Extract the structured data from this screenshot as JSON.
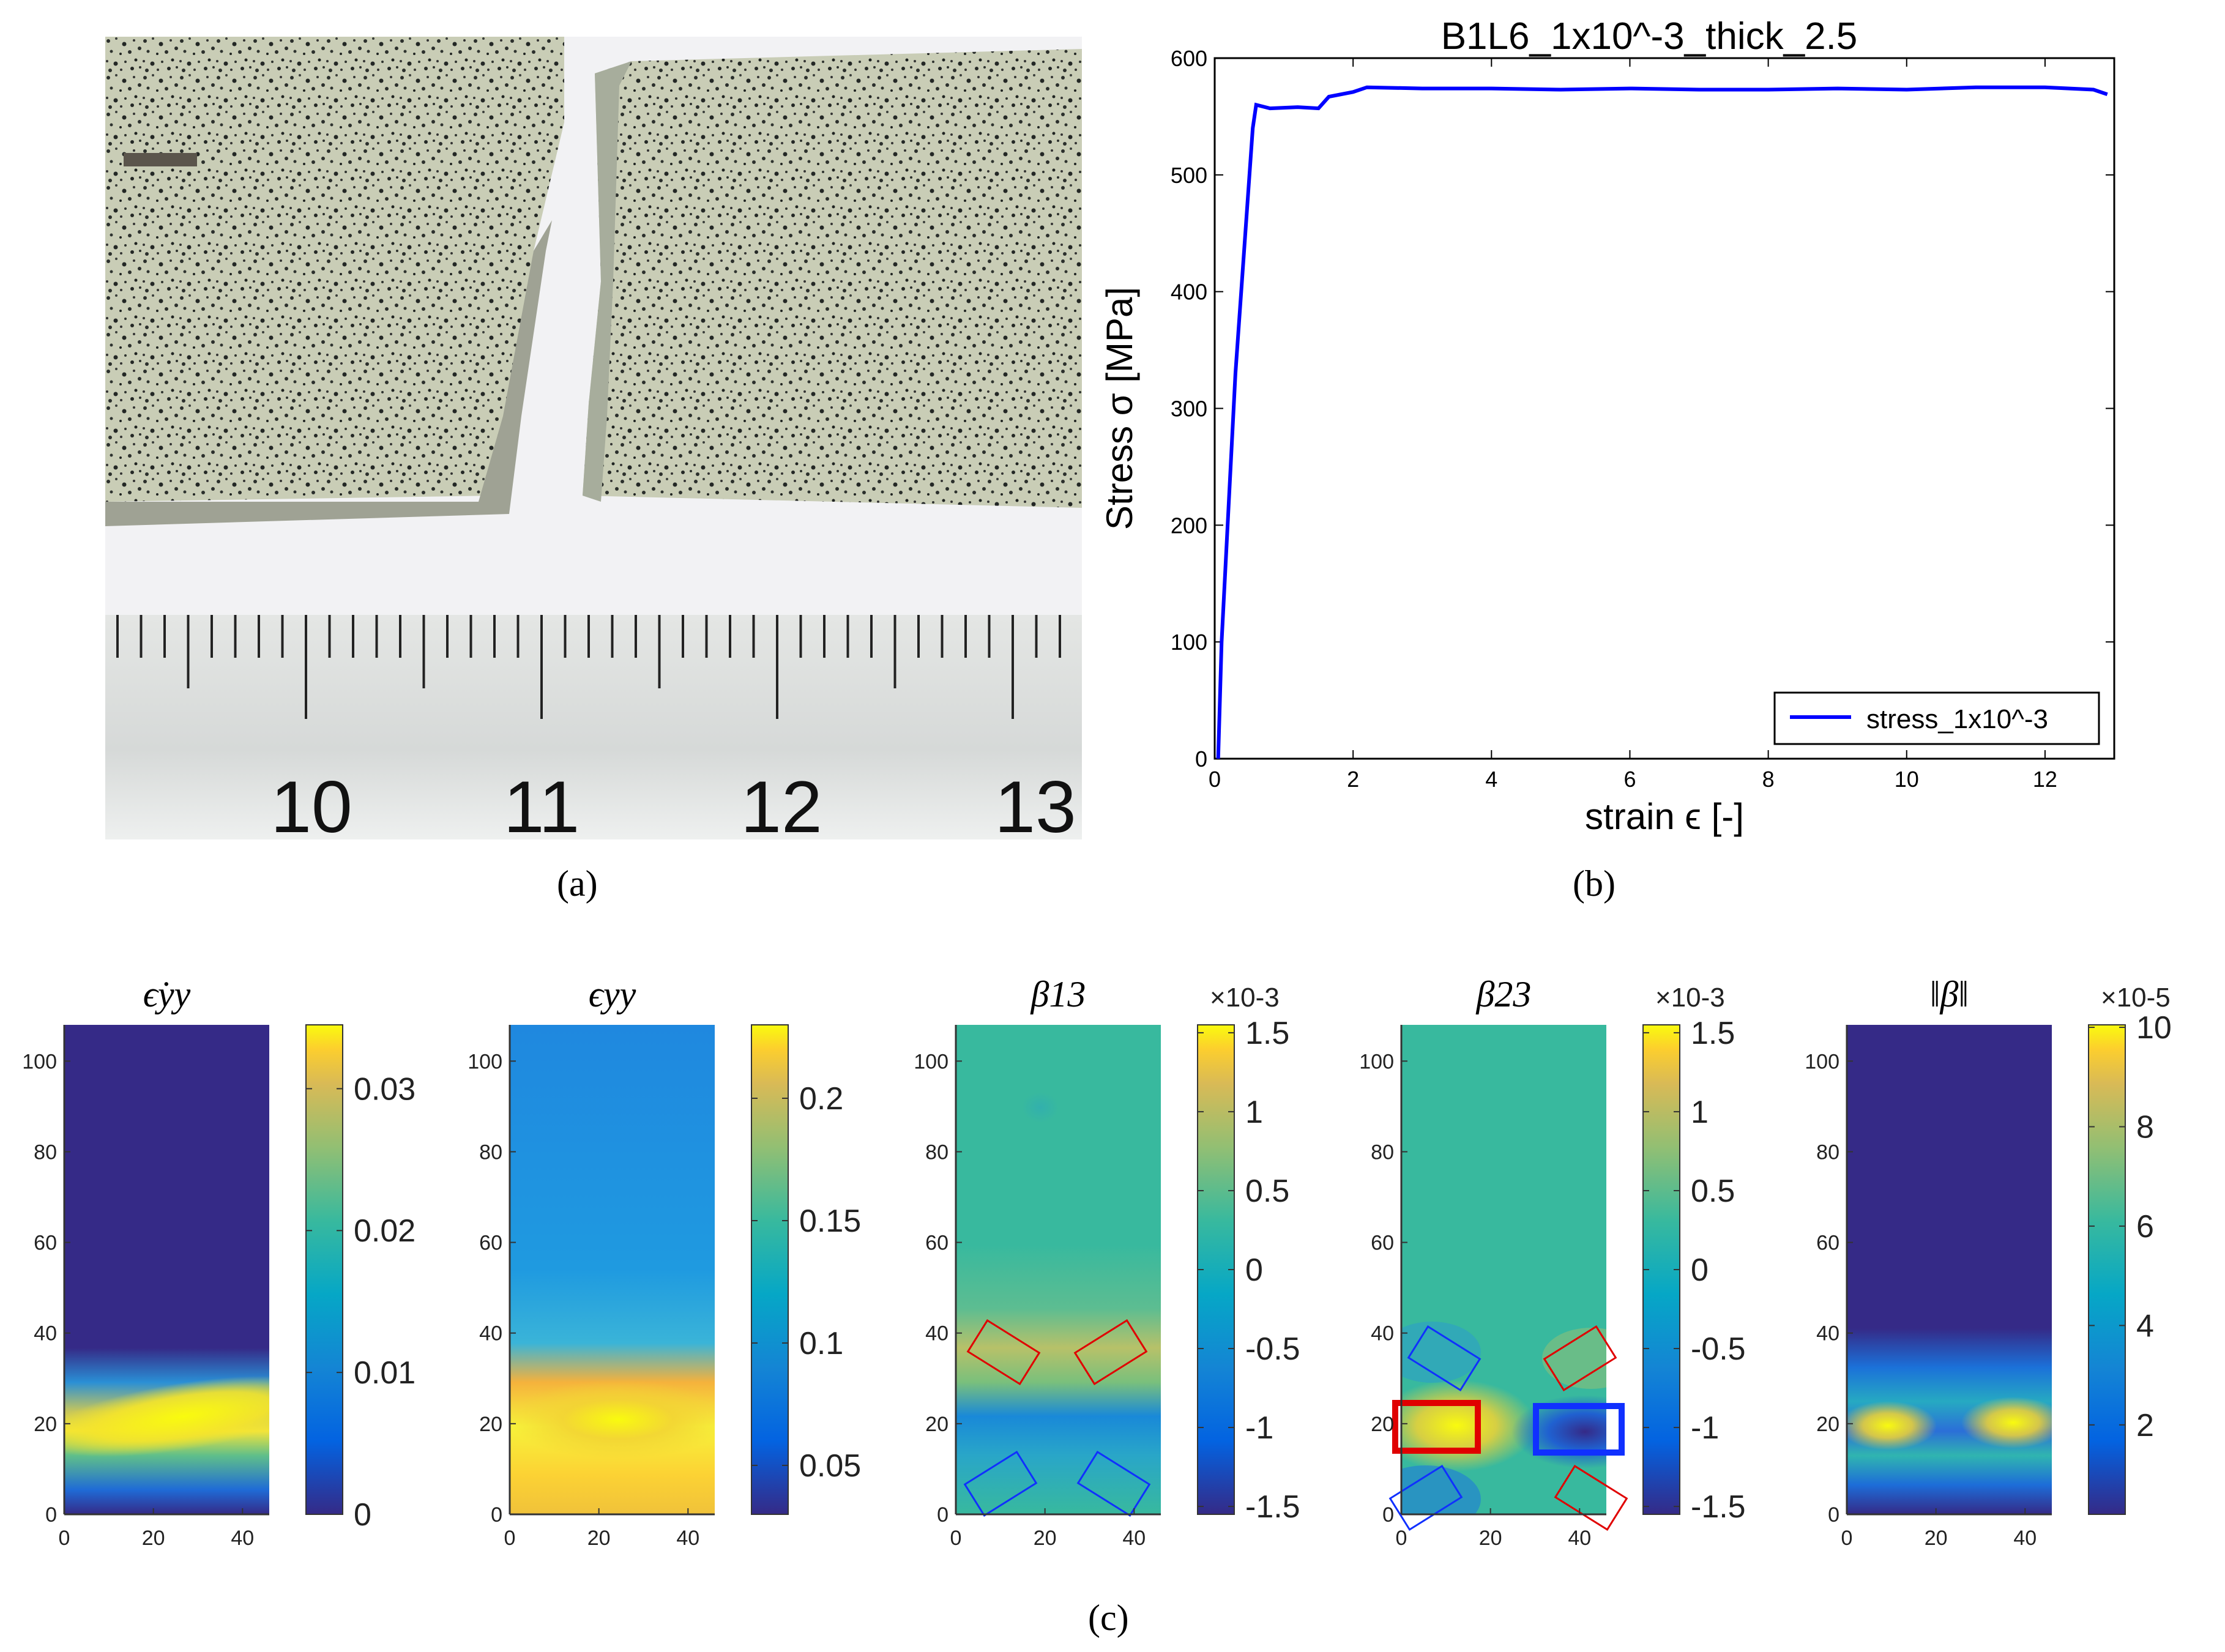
{
  "captions": {
    "a": "(a)",
    "b": "(b)",
    "c": "(c)"
  },
  "photo": {
    "ruler_labels": [
      "10",
      "11",
      "12",
      "13"
    ]
  },
  "chart_data": [
    {
      "type": "line",
      "title": "B1L6_1x10^-3_thick_2.5",
      "xlabel": "strain ϵ [-]",
      "ylabel": "Stress σ [MPa]",
      "xlim": [
        0,
        13
      ],
      "ylim": [
        0,
        600
      ],
      "xticks": [
        "0",
        "2",
        "4",
        "6",
        "8",
        "10",
        "12"
      ],
      "yticks": [
        "0",
        "100",
        "200",
        "300",
        "400",
        "500",
        "600"
      ],
      "legend": "bottom-right",
      "series": [
        {
          "name": "stress_1x10^-3",
          "color": "#0000ff",
          "x": [
            0.05,
            0.1,
            0.3,
            0.55,
            0.6,
            0.8,
            1.2,
            1.5,
            1.65,
            2.0,
            2.2,
            3,
            4,
            5,
            6,
            7,
            8,
            9,
            10,
            11,
            12,
            12.7,
            12.9
          ],
          "y": [
            0,
            100,
            330,
            540,
            560,
            557,
            558,
            557,
            567,
            571,
            575,
            574,
            574,
            573,
            574,
            573,
            573,
            574,
            573,
            575,
            575,
            573,
            569
          ]
        }
      ]
    },
    {
      "type": "heatmap",
      "title": "ϵ̇yy",
      "x_range": [
        0,
        46
      ],
      "y_range": [
        0,
        108
      ],
      "xticks": [
        "0",
        "20",
        "40"
      ],
      "yticks": [
        "0",
        "20",
        "40",
        "60",
        "80",
        "100"
      ],
      "colorbar": {
        "ticks": [
          "0",
          "0.01",
          "0.02",
          "0.03"
        ],
        "exponent": ""
      }
    },
    {
      "type": "heatmap",
      "title": "ϵyy",
      "x_range": [
        0,
        46
      ],
      "y_range": [
        0,
        108
      ],
      "xticks": [
        "0",
        "20",
        "40"
      ],
      "yticks": [
        "0",
        "20",
        "40",
        "60",
        "80",
        "100"
      ],
      "colorbar": {
        "ticks": [
          "0.05",
          "0.1",
          "0.15",
          "0.2"
        ],
        "exponent": ""
      }
    },
    {
      "type": "heatmap",
      "title": "β13",
      "x_range": [
        0,
        46
      ],
      "y_range": [
        0,
        108
      ],
      "xticks": [
        "0",
        "20",
        "40"
      ],
      "yticks": [
        "0",
        "20",
        "40",
        "60",
        "80",
        "100"
      ],
      "colorbar": {
        "ticks": [
          "-1.5",
          "-1",
          "-0.5",
          "0",
          "0.5",
          "1",
          "1.5"
        ],
        "exponent": "×10-3"
      }
    },
    {
      "type": "heatmap",
      "title": "β23",
      "x_range": [
        0,
        46
      ],
      "y_range": [
        0,
        108
      ],
      "xticks": [
        "0",
        "20",
        "40"
      ],
      "yticks": [
        "0",
        "20",
        "40",
        "60",
        "80",
        "100"
      ],
      "colorbar": {
        "ticks": [
          "-1.5",
          "-1",
          "-0.5",
          "0",
          "0.5",
          "1",
          "1.5"
        ],
        "exponent": "×10-3"
      }
    },
    {
      "type": "heatmap",
      "title": "‖β‖",
      "x_range": [
        0,
        46
      ],
      "y_range": [
        0,
        108
      ],
      "xticks": [
        "0",
        "20",
        "40"
      ],
      "yticks": [
        "0",
        "20",
        "40",
        "60",
        "80",
        "100"
      ],
      "colorbar": {
        "ticks": [
          "2",
          "4",
          "6",
          "8",
          "10"
        ],
        "exponent": "×10-5"
      }
    }
  ],
  "colors": {
    "parula_dark": "#352a87",
    "parula_blue": "#0f6fe0",
    "parula_teal": "#2fb8a5",
    "parula_yellow": "#f9fb0e",
    "line_blue": "#0000ff"
  }
}
